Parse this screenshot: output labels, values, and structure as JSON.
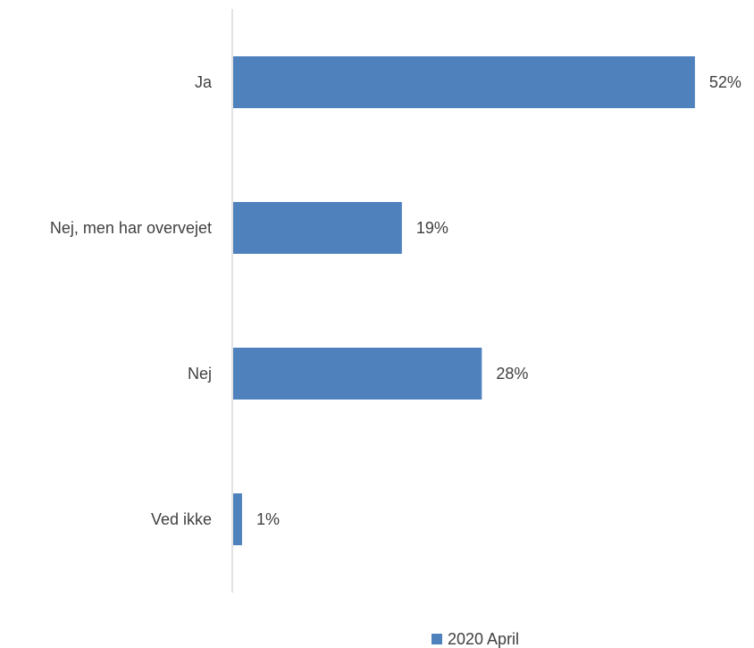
{
  "chart_data": {
    "type": "bar",
    "orientation": "horizontal",
    "categories": [
      "Ja",
      "Nej, men har overvejet",
      "Nej",
      "Ved ikke"
    ],
    "series": [
      {
        "name": "2020 April",
        "values": [
          52,
          19,
          28,
          1
        ],
        "value_labels": [
          "52%",
          "19%",
          "28%",
          "1%"
        ],
        "color": "#4f81bd"
      }
    ],
    "xlim": [
      0,
      58
    ],
    "grid": false,
    "legend_position": "bottom"
  }
}
